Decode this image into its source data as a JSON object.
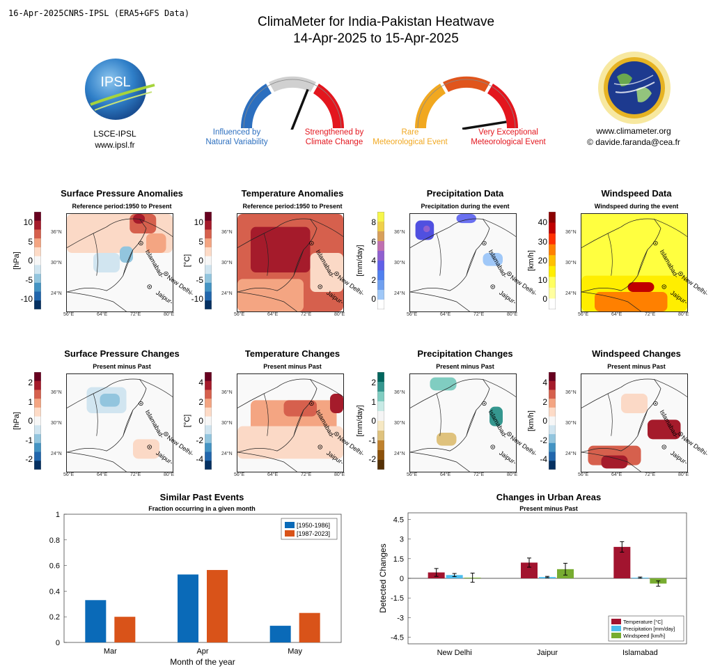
{
  "header": {
    "left_text": "16-Apr-2025CNRS-IPSL (ERA5+GFS Data)",
    "title_line1": "ClimaMeter for India-Pakistan Heatwave",
    "title_line2": "14-Apr-2025 to 15-Apr-2025"
  },
  "logos": {
    "left_name": "LSCE-IPSL",
    "left_url": "www.ipsl.fr",
    "left_logo_text": "IPSL",
    "right_url": "www.climameter.org",
    "right_contact": "© davide.faranda@cea.fr"
  },
  "gauges": {
    "left": {
      "label_left": [
        "Influenced by",
        "Natural Variability"
      ],
      "label_right": [
        "Strengthened by",
        "Climate Change"
      ],
      "needle_level": 0.62
    },
    "right": {
      "label_left": [
        "Rare",
        "Meteorological Event"
      ],
      "label_right": [
        "Very Exceptional",
        "Meteorological Event"
      ],
      "needle_level": 0.95
    },
    "colors": {
      "blue": "#2c6fbf",
      "grey": "#d0d0d0",
      "red": "#e3161e",
      "yellow": "#f1a820",
      "orange": "#e0551c",
      "crimson": "#e3161e"
    }
  },
  "maps": {
    "lon_ticks": [
      "56°E",
      "64°E",
      "72°E",
      "80°E"
    ],
    "lat_ticks": [
      "36°N",
      "30°N",
      "24°N"
    ],
    "cities": [
      "Islamabad-",
      "New Delhi-",
      "Jaipur-"
    ],
    "row1": [
      {
        "title": "Surface Pressure Anomalies",
        "subtitle": "Reference period:1950 to Present",
        "unit": "[hPa]",
        "ticks": [
          "10",
          "5",
          "0",
          "-5",
          "-10"
        ],
        "scheme": "div"
      },
      {
        "title": "Temperature Anomalies",
        "subtitle": "Reference period:1950 to Present",
        "unit": "[°C]",
        "ticks": [
          "10",
          "5",
          "0",
          "-5",
          "-10"
        ],
        "scheme": "div"
      },
      {
        "title": "Precipitation Data",
        "subtitle": "Precipitation during the event",
        "unit": "[mm/day]",
        "ticks": [
          "8",
          "6",
          "4",
          "2",
          "0"
        ],
        "scheme": "prec"
      },
      {
        "title": "Windspeed Data",
        "subtitle": "Windspeed during the event",
        "unit": "[km/h]",
        "ticks": [
          "40",
          "30",
          "20",
          "10",
          "0"
        ],
        "scheme": "wind"
      }
    ],
    "row2": [
      {
        "title": "Surface Pressure Changes",
        "subtitle": "Present minus Past",
        "unit": "[hPa]",
        "ticks": [
          "2",
          "1",
          "0",
          "-1",
          "-2"
        ],
        "scheme": "div"
      },
      {
        "title": "Temperature Changes",
        "subtitle": "Present minus Past",
        "unit": "[°C]",
        "ticks": [
          "4",
          "2",
          "0",
          "-2",
          "-4"
        ],
        "scheme": "div"
      },
      {
        "title": "Precipitation Changes",
        "subtitle": "Present minus Past",
        "unit": "[mm/day]",
        "ticks": [
          "2",
          "1",
          "0",
          "-1",
          "-2"
        ],
        "scheme": "brbg"
      },
      {
        "title": "Windspeed Changes",
        "subtitle": "Present minus Past",
        "unit": "[km/h]",
        "ticks": [
          "4",
          "2",
          "0",
          "-2",
          "-4"
        ],
        "scheme": "div"
      }
    ]
  },
  "chart_data": [
    {
      "type": "bar",
      "title": "Similar Past Events",
      "subtitle": "Fraction occurring in a given month",
      "categories": [
        "Mar",
        "Apr",
        "May"
      ],
      "xlabel": "Month of the year",
      "ylabel": "",
      "ylim": [
        0,
        1
      ],
      "yticks": [
        "0",
        "0.2",
        "0.4",
        "0.6",
        "0.8",
        "1"
      ],
      "legend_position": "top-right",
      "series": [
        {
          "name": "[1950-1986]",
          "color": "#0a6ab8",
          "values": [
            0.33,
            0.53,
            0.13
          ]
        },
        {
          "name": "[1987-2023]",
          "color": "#d95319",
          "values": [
            0.2,
            0.565,
            0.23
          ]
        }
      ]
    },
    {
      "type": "bar",
      "title": "Changes in Urban Areas",
      "subtitle": "Present minus Past",
      "categories": [
        "New Delhi",
        "Jaipur",
        "Islamabad"
      ],
      "xlabel": "",
      "ylabel": "Detected Changes",
      "ylim": [
        -5,
        5
      ],
      "yticks": [
        "4.5",
        "3",
        "1.5",
        "0",
        "-1.5",
        "-3",
        "-4.5"
      ],
      "legend_position": "bottom-right",
      "series": [
        {
          "name": "Temperature [°C]",
          "color": "#a2142f",
          "values": [
            0.45,
            1.2,
            2.4
          ],
          "errors": [
            0.3,
            0.35,
            0.4
          ]
        },
        {
          "name": "Precipitation [mm/day]",
          "color": "#4dbeee",
          "values": [
            0.25,
            0.1,
            0.05
          ],
          "errors": [
            0.12,
            0.05,
            0.05
          ]
        },
        {
          "name": "Windspeed [km/h]",
          "color": "#77ac30",
          "values": [
            0.05,
            0.7,
            -0.4
          ],
          "errors": [
            0.35,
            0.45,
            0.2
          ]
        }
      ]
    }
  ]
}
